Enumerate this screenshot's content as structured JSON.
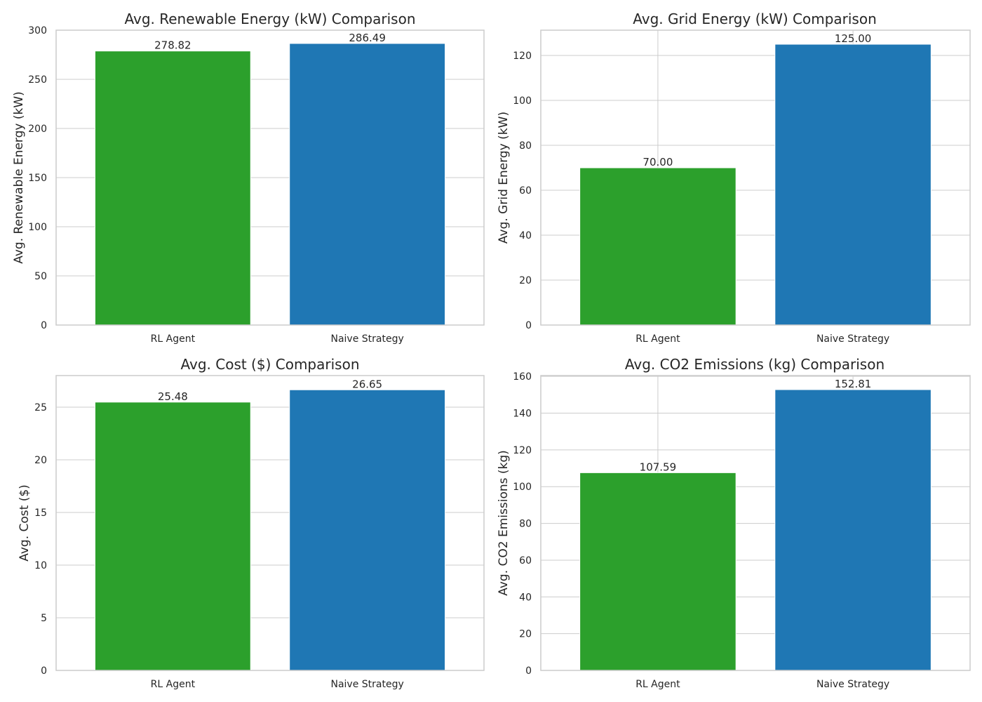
{
  "chart_data": [
    {
      "type": "bar",
      "title": "Avg. Renewable Energy (kW) Comparison",
      "xlabel": "",
      "ylabel": "Avg. Renewable Energy (kW)",
      "categories": [
        "RL Agent",
        "Naive Strategy"
      ],
      "values": [
        278.82,
        286.49
      ],
      "value_labels": [
        "278.82",
        "286.49"
      ],
      "colors": [
        "#2ca02c",
        "#1f77b4"
      ],
      "ylim": [
        0,
        300
      ],
      "yticks": [
        0,
        50,
        100,
        150,
        200,
        250,
        300
      ],
      "grid": true,
      "grid_x": false
    },
    {
      "type": "bar",
      "title": "Avg. Grid Energy (kW) Comparison",
      "xlabel": "",
      "ylabel": "Avg. Grid Energy (kW)",
      "categories": [
        "RL Agent",
        "Naive Strategy"
      ],
      "values": [
        70.0,
        125.0
      ],
      "value_labels": [
        "70.00",
        "125.00"
      ],
      "colors": [
        "#2ca02c",
        "#1f77b4"
      ],
      "ylim": [
        0,
        131.25
      ],
      "yticks": [
        0,
        20,
        40,
        60,
        80,
        100,
        120
      ],
      "grid": true,
      "grid_x": true
    },
    {
      "type": "bar",
      "title": "Avg. Cost ($) Comparison",
      "xlabel": "",
      "ylabel": "Avg. Cost ($)",
      "categories": [
        "RL Agent",
        "Naive Strategy"
      ],
      "values": [
        25.48,
        26.65
      ],
      "value_labels": [
        "25.48",
        "26.65"
      ],
      "colors": [
        "#2ca02c",
        "#1f77b4"
      ],
      "ylim": [
        0,
        28.0
      ],
      "yticks": [
        0,
        5,
        10,
        15,
        20,
        25
      ],
      "grid": true,
      "grid_x": false
    },
    {
      "type": "bar",
      "title": "Avg. CO2 Emissions (kg) Comparison",
      "xlabel": "",
      "ylabel": "Avg. CO2 Emissions (kg)",
      "categories": [
        "RL Agent",
        "Naive Strategy"
      ],
      "values": [
        107.59,
        152.81
      ],
      "value_labels": [
        "107.59",
        "152.81"
      ],
      "colors": [
        "#2ca02c",
        "#1f77b4"
      ],
      "ylim": [
        0,
        160.45
      ],
      "yticks": [
        0,
        20,
        40,
        60,
        80,
        100,
        120,
        140,
        160
      ],
      "grid": true,
      "grid_x": true
    }
  ]
}
